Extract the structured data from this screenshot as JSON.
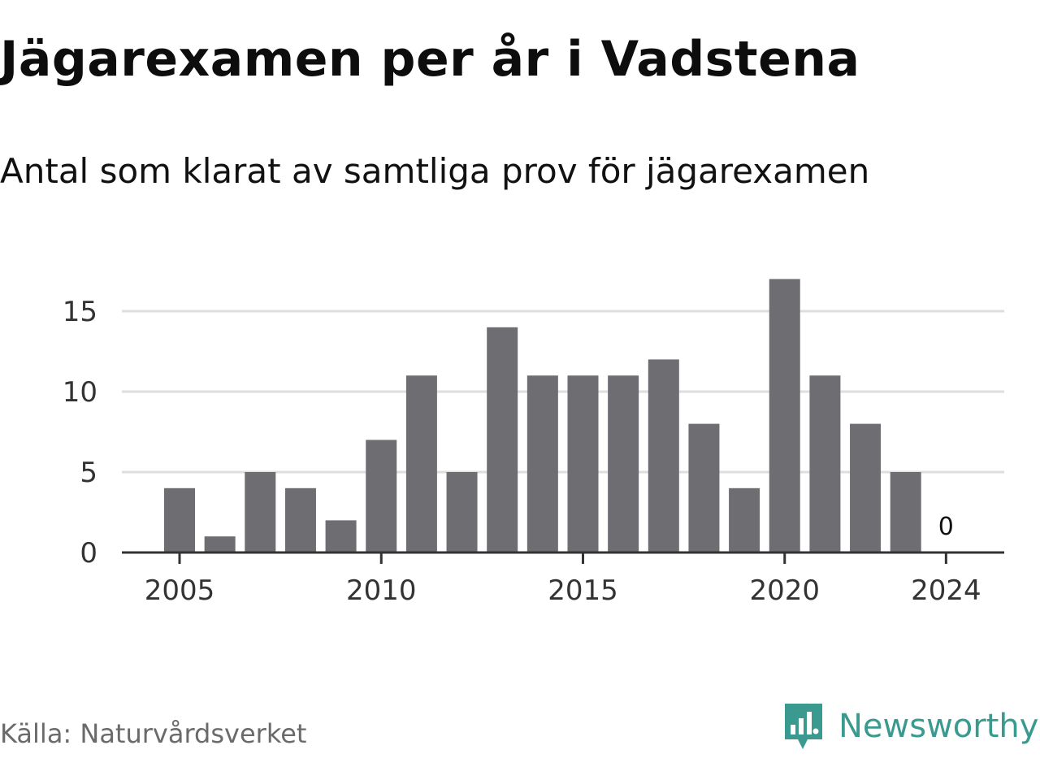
{
  "header": {
    "title": "Jägarexamen per år i Vadstena",
    "subtitle": "Antal som klarat av samtliga prov för jägarexamen"
  },
  "footer": {
    "source": "Källa: Naturvårdsverket",
    "brand": "Newsworthy",
    "brand_icon": "newsworthy-logo-icon"
  },
  "colors": {
    "bar": "#6e6d72",
    "gridline": "#dedede",
    "axis": "#333333",
    "brand": "#3a9a8f"
  },
  "chart_data": {
    "type": "bar",
    "title": "Jägarexamen per år i Vadstena",
    "subtitle": "Antal som klarat av samtliga prov för jägarexamen",
    "xlabel": "",
    "ylabel": "",
    "categories": [
      2005,
      2006,
      2007,
      2008,
      2009,
      2010,
      2011,
      2012,
      2013,
      2014,
      2015,
      2016,
      2017,
      2018,
      2019,
      2020,
      2021,
      2022,
      2023,
      2024
    ],
    "values": [
      4,
      1,
      5,
      4,
      2,
      7,
      11,
      5,
      14,
      11,
      11,
      11,
      12,
      8,
      4,
      17,
      11,
      8,
      5,
      0
    ],
    "x_ticks": [
      "2005",
      "2010",
      "2015",
      "2020",
      "2024"
    ],
    "y_ticks": [
      0,
      5,
      10,
      15
    ],
    "ylim": [
      0,
      17
    ],
    "grid": true,
    "data_labels": [
      {
        "category": 2024,
        "text": "0"
      }
    ]
  }
}
